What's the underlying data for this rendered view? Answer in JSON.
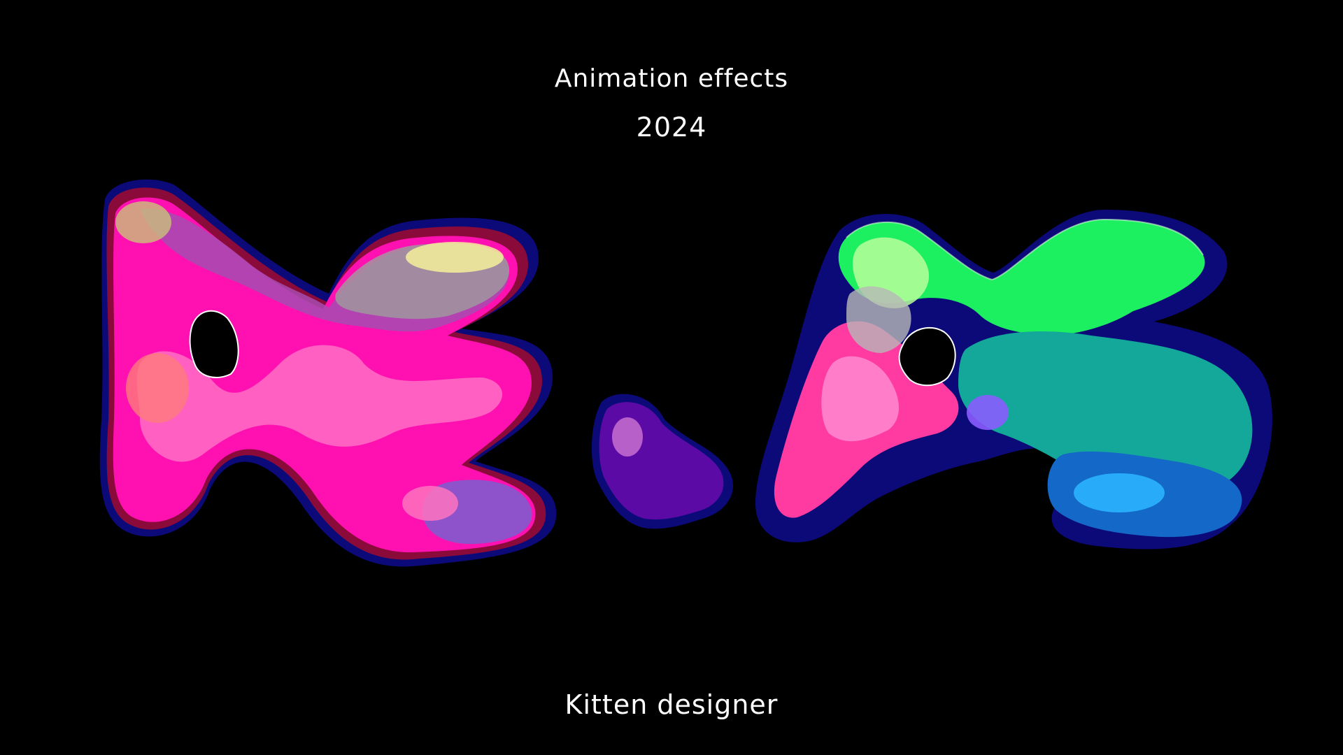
{
  "header": {
    "title": "Animation effects",
    "year": "2024"
  },
  "footer": {
    "credit": "Kitten designer"
  },
  "artwork": {
    "description_icon": "liquid-blob-letters",
    "colors": {
      "background": "#000000",
      "magenta": "#ff10b0",
      "pink": "#ff5fc8",
      "purple": "#7a2fb8",
      "navy": "#0b0a78",
      "green": "#1cf060",
      "teal": "#13a89a",
      "blue": "#1468c8",
      "cyan": "#2ab4ff"
    }
  }
}
